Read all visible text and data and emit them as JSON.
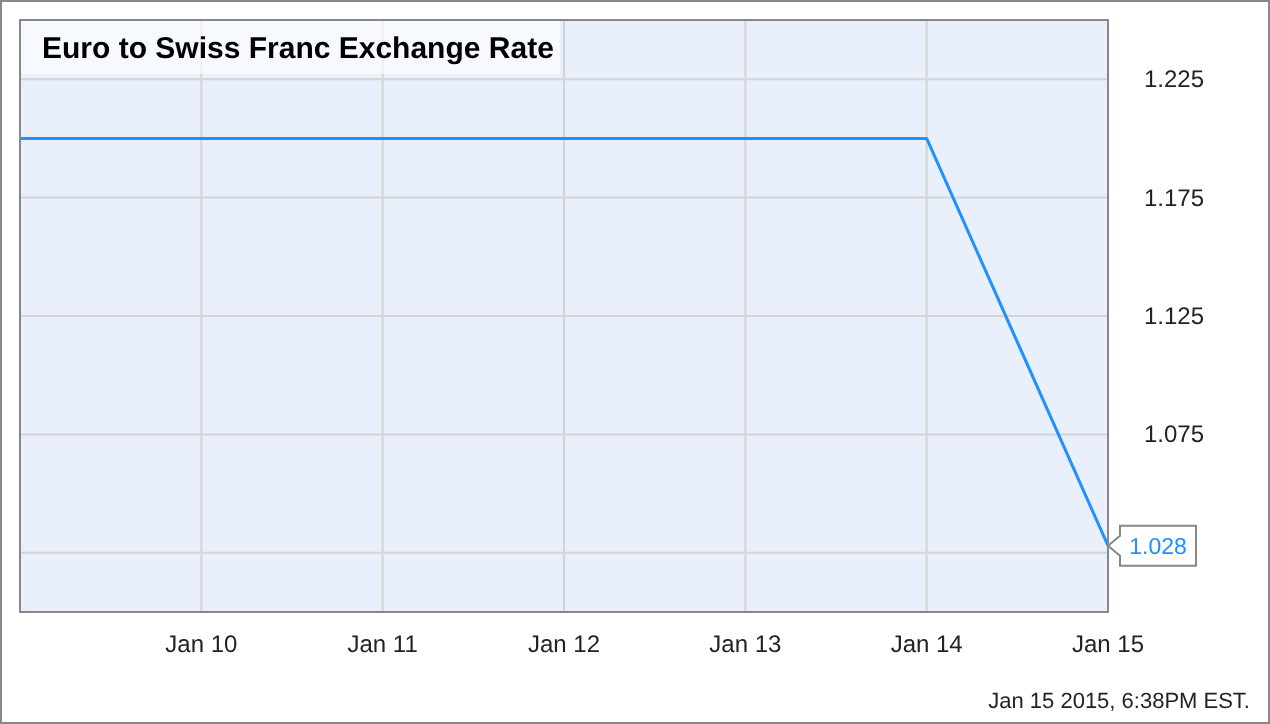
{
  "chart_data": {
    "type": "line",
    "title": "Euro to Swiss Franc Exchange Rate",
    "x": [
      "2015-01-09",
      "2015-01-10",
      "2015-01-11",
      "2015-01-12",
      "2015-01-13",
      "2015-01-14",
      "2015-01-15"
    ],
    "series": [
      {
        "color": "#1e90ff",
        "values": [
          1.2,
          1.2,
          1.2,
          1.2,
          1.2,
          1.2,
          1.028
        ],
        "value_labels": [
          null,
          null,
          null,
          null,
          null,
          null,
          "1.028"
        ]
      }
    ],
    "xlim": [
      "2015-01-09",
      "2015-01-15"
    ],
    "xticks": [
      {
        "value": "2015-01-10",
        "label": "Jan 10"
      },
      {
        "value": "2015-01-11",
        "label": "Jan 11"
      },
      {
        "value": "2015-01-12",
        "label": "Jan 12"
      },
      {
        "value": "2015-01-13",
        "label": "Jan 13"
      },
      {
        "value": "2015-01-14",
        "label": "Jan 14"
      },
      {
        "value": "2015-01-15",
        "label": "Jan 15"
      }
    ],
    "ylim": [
      1.0,
      1.25
    ],
    "yticks": [
      {
        "value": 1.025,
        "label": null
      },
      {
        "value": 1.075,
        "label": "1.075"
      },
      {
        "value": 1.125,
        "label": "1.125"
      },
      {
        "value": 1.175,
        "label": "1.175"
      },
      {
        "value": 1.225,
        "label": "1.225"
      }
    ],
    "grid": true,
    "marker": "none",
    "line_style": "solid",
    "annotations": [
      "Jan 15 2015, 6:38PM EST."
    ]
  }
}
